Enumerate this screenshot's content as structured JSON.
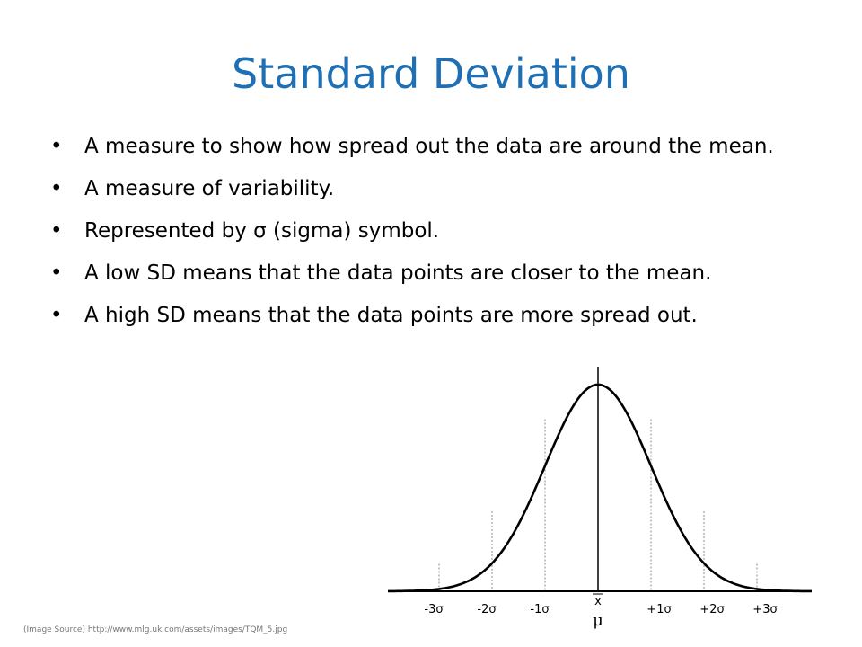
{
  "slide": {
    "title": "Standard Deviation",
    "bullets": [
      "A measure to show how spread out the data are around the mean.",
      "A measure of variability.",
      "Represented by σ (sigma) symbol.",
      "A low SD means that the data points are closer to the mean.",
      "A high SD means that the data points are more spread out."
    ],
    "bullet_glyph": "•",
    "title_color": "#1f6fb4"
  },
  "figure": {
    "sigma_labels": [
      "-3σ",
      "-2σ",
      "-1σ",
      "+1σ",
      "+2σ",
      "+3σ"
    ],
    "xbar_label": "x",
    "mu_label": "μ"
  },
  "image_source": "(Image Source) http://www.mlg.uk.com/assets/images/TQM_5.jpg"
}
